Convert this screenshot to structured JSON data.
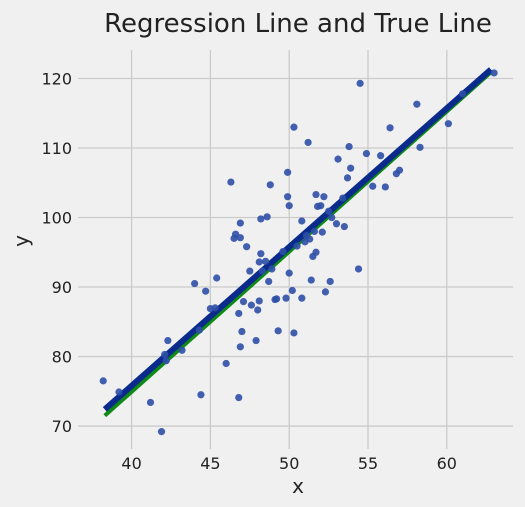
{
  "chart_data": {
    "type": "scatter",
    "title": "Regression Line and True Line",
    "xlabel": "x",
    "ylabel": "y",
    "xlim": [
      36.6,
      64.2
    ],
    "ylim": [
      66.7,
      124.1
    ],
    "xticks": [
      "40",
      "45",
      "50",
      "55",
      "60"
    ],
    "yticks": [
      "70",
      "80",
      "90",
      "100",
      "110",
      "120"
    ],
    "grid": true,
    "point_color": "#2d4fa6",
    "regression_color": "#0a2a8c",
    "true_color": "#0e8a16",
    "points": [
      [
        38.2,
        76.5
      ],
      [
        39.2,
        74.9
      ],
      [
        41.2,
        73.4
      ],
      [
        41.9,
        69.2
      ],
      [
        42.1,
        80.3
      ],
      [
        42.2,
        79.4
      ],
      [
        42.3,
        82.3
      ],
      [
        43.2,
        80.9
      ],
      [
        44.0,
        90.5
      ],
      [
        44.3,
        83.8
      ],
      [
        44.4,
        74.5
      ],
      [
        44.7,
        89.4
      ],
      [
        45.0,
        86.9
      ],
      [
        45.3,
        87.0
      ],
      [
        45.4,
        91.3
      ],
      [
        46.0,
        79.0
      ],
      [
        46.3,
        105.1
      ],
      [
        46.5,
        97.0
      ],
      [
        46.6,
        97.6
      ],
      [
        46.8,
        74.1
      ],
      [
        46.8,
        86.2
      ],
      [
        46.9,
        99.2
      ],
      [
        46.9,
        97.1
      ],
      [
        46.9,
        81.4
      ],
      [
        47.0,
        83.6
      ],
      [
        47.1,
        87.9
      ],
      [
        47.3,
        95.8
      ],
      [
        47.5,
        92.3
      ],
      [
        47.6,
        87.4
      ],
      [
        47.9,
        82.3
      ],
      [
        48.0,
        86.7
      ],
      [
        48.1,
        88.0
      ],
      [
        48.1,
        93.6
      ],
      [
        48.2,
        94.8
      ],
      [
        48.2,
        99.8
      ],
      [
        48.3,
        92.3
      ],
      [
        48.5,
        93.7
      ],
      [
        48.6,
        100.1
      ],
      [
        48.7,
        90.8
      ],
      [
        48.8,
        104.7
      ],
      [
        48.9,
        92.6
      ],
      [
        49.1,
        88.2
      ],
      [
        49.2,
        88.3
      ],
      [
        49.3,
        83.7
      ],
      [
        49.6,
        95.1
      ],
      [
        49.8,
        88.4
      ],
      [
        49.9,
        103.0
      ],
      [
        49.9,
        106.5
      ],
      [
        50.0,
        101.7
      ],
      [
        50.0,
        92.0
      ],
      [
        50.2,
        89.5
      ],
      [
        50.3,
        83.4
      ],
      [
        50.3,
        113.0
      ],
      [
        50.5,
        95.9
      ],
      [
        50.8,
        99.5
      ],
      [
        50.8,
        88.4
      ],
      [
        51.0,
        96.5
      ],
      [
        51.1,
        97.4
      ],
      [
        51.2,
        110.8
      ],
      [
        51.3,
        96.9
      ],
      [
        51.4,
        91.0
      ],
      [
        51.5,
        94.4
      ],
      [
        51.6,
        98.0
      ],
      [
        51.7,
        103.3
      ],
      [
        51.7,
        95.0
      ],
      [
        51.8,
        101.6
      ],
      [
        52.0,
        101.7
      ],
      [
        52.1,
        97.9
      ],
      [
        52.2,
        103.0
      ],
      [
        52.3,
        89.3
      ],
      [
        52.5,
        100.9
      ],
      [
        52.6,
        90.8
      ],
      [
        52.7,
        100.0
      ],
      [
        53.0,
        99.1
      ],
      [
        53.1,
        108.4
      ],
      [
        53.4,
        102.8
      ],
      [
        53.5,
        98.7
      ],
      [
        53.7,
        105.7
      ],
      [
        53.8,
        110.2
      ],
      [
        53.9,
        107.1
      ],
      [
        54.4,
        92.6
      ],
      [
        54.5,
        119.3
      ],
      [
        54.9,
        109.2
      ],
      [
        55.3,
        104.5
      ],
      [
        55.8,
        108.9
      ],
      [
        56.1,
        104.4
      ],
      [
        56.4,
        112.9
      ],
      [
        56.8,
        106.3
      ],
      [
        57.0,
        106.8
      ],
      [
        58.1,
        116.3
      ],
      [
        58.3,
        110.1
      ],
      [
        60.1,
        113.5
      ],
      [
        61.0,
        117.8
      ],
      [
        63.0,
        120.8
      ]
    ],
    "regression_line": {
      "x": [
        38.3,
        62.8
      ],
      "y": [
        72.4,
        121.3
      ]
    },
    "true_line": {
      "x": [
        38.3,
        62.8
      ],
      "y": [
        71.5,
        120.9
      ]
    }
  }
}
